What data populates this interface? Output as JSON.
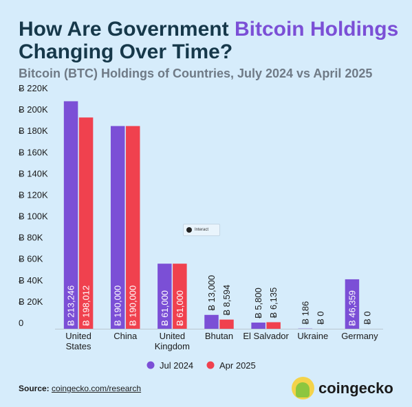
{
  "title_part1": "How Are Government ",
  "title_accent": "Bitcoin Holdings",
  "title_part2": " Changing Over Time?",
  "subtitle": "Bitcoin (BTC) Holdings of Countries, July 2024 vs April 2025",
  "interact_label": "Interact",
  "source_label": "Source:",
  "source_link": "coingecko.com/research",
  "logo_text": "coingecko",
  "chart_data": {
    "type": "bar",
    "categories": [
      [
        "United",
        "States"
      ],
      [
        "China"
      ],
      [
        "United",
        "Kingdom"
      ],
      [
        "Bhutan"
      ],
      [
        "El Salvador"
      ],
      [
        "Ukraine"
      ],
      [
        "Germany"
      ]
    ],
    "series": [
      {
        "name": "Jul 2024",
        "color": "#7b4fd6",
        "values": [
          213246,
          190000,
          61000,
          13000,
          5800,
          186,
          46359
        ],
        "labels": [
          "Ƀ 213,246",
          "Ƀ 190,000",
          "Ƀ 61,000",
          "Ƀ 13,000",
          "Ƀ 5,800",
          "Ƀ 186",
          "Ƀ 46,359"
        ]
      },
      {
        "name": "Apr 2025",
        "color": "#f0414e",
        "values": [
          198012,
          190000,
          61000,
          8594,
          6135,
          0,
          0
        ],
        "labels": [
          "Ƀ 198,012",
          "Ƀ 190,000",
          "Ƀ 61,000",
          "Ƀ 8,594",
          "Ƀ 6,135",
          "Ƀ 0",
          "Ƀ 0"
        ]
      }
    ],
    "yticks": [
      {
        "value": 0,
        "label": "0"
      },
      {
        "value": 20000,
        "label": "Ƀ 20K"
      },
      {
        "value": 40000,
        "label": "Ƀ 40K"
      },
      {
        "value": 60000,
        "label": "Ƀ 60K"
      },
      {
        "value": 80000,
        "label": "Ƀ 80K"
      },
      {
        "value": 100000,
        "label": "Ƀ 100K"
      },
      {
        "value": 120000,
        "label": "Ƀ 120K"
      },
      {
        "value": 140000,
        "label": "Ƀ 140K"
      },
      {
        "value": 160000,
        "label": "Ƀ 160K"
      },
      {
        "value": 180000,
        "label": "Ƀ 180K"
      },
      {
        "value": 200000,
        "label": "Ƀ 200K"
      },
      {
        "value": 220000,
        "label": "Ƀ 220K"
      }
    ],
    "ylim": [
      0,
      220000
    ],
    "legend_position": "bottom-center"
  }
}
